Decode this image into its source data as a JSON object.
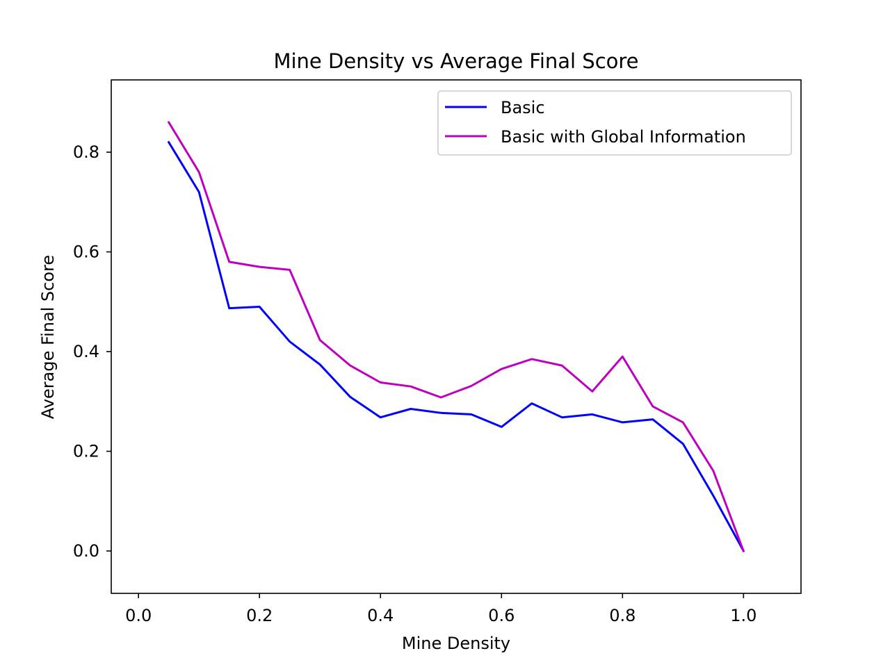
{
  "chart_data": {
    "type": "line",
    "title": "Mine Density vs Average Final Score",
    "xlabel": "Mine Density",
    "ylabel": "Average Final Score",
    "xlim": [
      -0.045,
      1.095
    ],
    "ylim": [
      -0.085,
      0.945
    ],
    "xticks": [
      0.0,
      0.2,
      0.4,
      0.6,
      0.8,
      1.0
    ],
    "xtick_labels": [
      "0.0",
      "0.2",
      "0.4",
      "0.6",
      "0.8",
      "1.0"
    ],
    "yticks": [
      0.0,
      0.2,
      0.4,
      0.6,
      0.8
    ],
    "ytick_labels": [
      "0.0",
      "0.2",
      "0.4",
      "0.6",
      "0.8"
    ],
    "grid": false,
    "legend_position": "top-right",
    "x": [
      0.05,
      0.1,
      0.15,
      0.2,
      0.25,
      0.3,
      0.35,
      0.4,
      0.45,
      0.5,
      0.55,
      0.6,
      0.65,
      0.7,
      0.75,
      0.8,
      0.85,
      0.9,
      0.95,
      1.0
    ],
    "series": [
      {
        "name": "Basic",
        "color": "#0000ff",
        "values": [
          0.82,
          0.72,
          0.487,
          0.49,
          0.42,
          0.374,
          0.309,
          0.268,
          0.285,
          0.277,
          0.274,
          0.249,
          0.296,
          0.268,
          0.274,
          0.258,
          0.264,
          0.215,
          0.111,
          0.0
        ]
      },
      {
        "name": "Basic with Global Information",
        "color": "#bf00bf",
        "values": [
          0.86,
          0.76,
          0.58,
          0.57,
          0.564,
          0.423,
          0.372,
          0.338,
          0.33,
          0.308,
          0.331,
          0.365,
          0.385,
          0.372,
          0.32,
          0.39,
          0.29,
          0.258,
          0.161,
          0.0
        ]
      }
    ]
  }
}
